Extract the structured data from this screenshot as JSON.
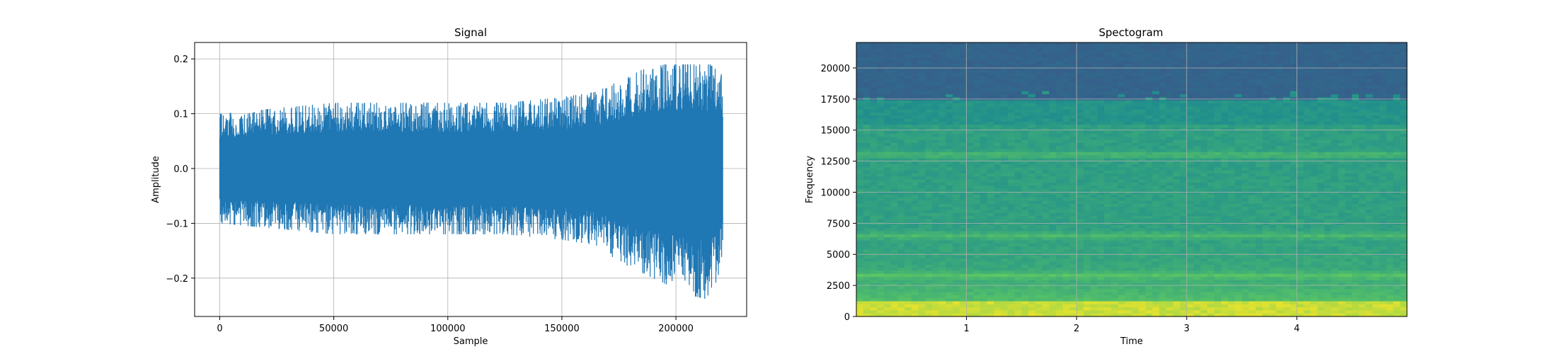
{
  "chart_data": [
    {
      "type": "line",
      "title": "Signal",
      "xlabel": "Sample",
      "ylabel": "Amplitude",
      "xlim": [
        -11000,
        231000
      ],
      "ylim": [
        -0.27,
        0.23
      ],
      "xticks": [
        0,
        50000,
        100000,
        150000,
        200000
      ],
      "xtick_labels": [
        "0",
        "50000",
        "100000",
        "150000",
        "200000"
      ],
      "yticks": [
        -0.2,
        -0.1,
        0.0,
        0.1,
        0.2
      ],
      "ytick_labels": [
        "−0.2",
        "−0.1",
        "0.0",
        "0.1",
        "0.2"
      ],
      "grid": true,
      "line_color": "#1f77b4",
      "series": [
        {
          "x_range": [
            0,
            220500
          ],
          "envelope_x": [
            0,
            25000,
            50000,
            75000,
            100000,
            125000,
            150000,
            165000,
            175000,
            185000,
            195000,
            205000,
            215000,
            220500
          ],
          "envelope_upper": [
            0.1,
            0.11,
            0.12,
            0.12,
            0.12,
            0.12,
            0.13,
            0.14,
            0.16,
            0.18,
            0.19,
            0.19,
            0.19,
            0.17
          ],
          "envelope_lower": [
            -0.1,
            -0.11,
            -0.12,
            -0.12,
            -0.12,
            -0.12,
            -0.13,
            -0.14,
            -0.17,
            -0.19,
            -0.21,
            -0.23,
            -0.24,
            -0.17
          ]
        }
      ]
    },
    {
      "type": "heatmap",
      "title": "Spectogram",
      "xlabel": "Time",
      "ylabel": "Frequency",
      "xlim": [
        0,
        5.0
      ],
      "ylim": [
        0,
        22050
      ],
      "xticks": [
        1,
        2,
        3,
        4
      ],
      "xtick_labels": [
        "1",
        "2",
        "3",
        "4"
      ],
      "yticks": [
        0,
        2500,
        5000,
        7500,
        10000,
        12500,
        15000,
        17500,
        20000
      ],
      "ytick_labels": [
        "0",
        "2500",
        "5000",
        "7500",
        "10000",
        "12500",
        "15000",
        "17500",
        "20000"
      ],
      "grid": true,
      "colormap": "viridis",
      "cutoff_frequency": 17500,
      "bright_bands": [
        3300,
        6500,
        13000
      ],
      "high_energy_region": [
        0,
        1500
      ]
    }
  ]
}
